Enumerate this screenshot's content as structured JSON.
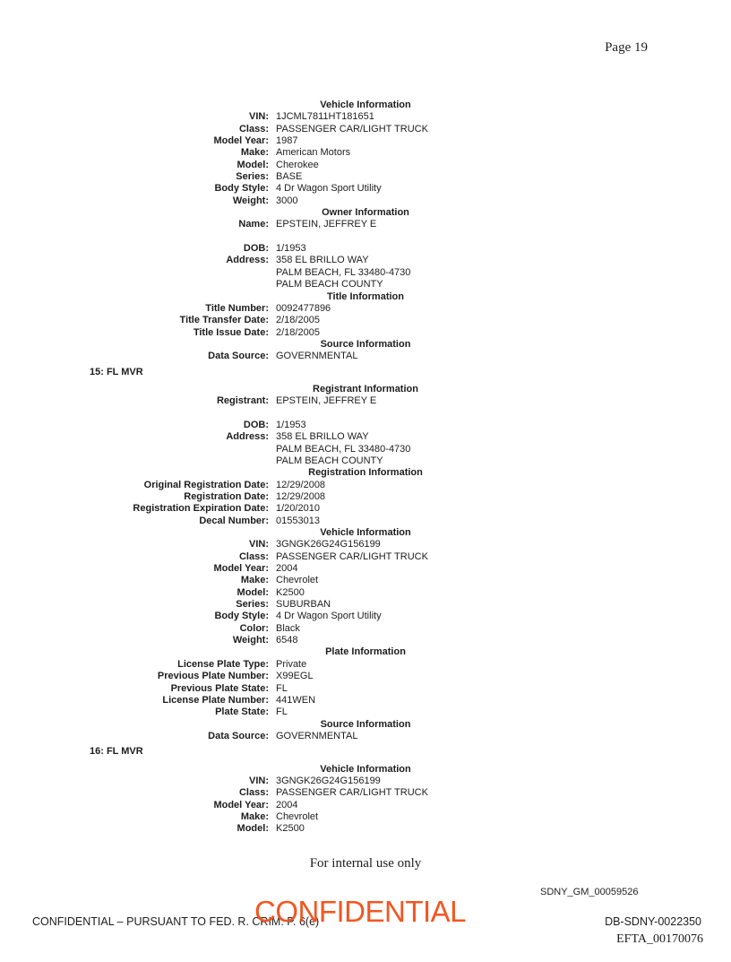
{
  "page": {
    "number_label": "Page 19"
  },
  "document": {
    "lines": [
      {
        "t": "s",
        "text": "Vehicle Information"
      },
      {
        "t": "f",
        "label": "VIN:",
        "value": "1JCML7811HT181651"
      },
      {
        "t": "f",
        "label": "Class:",
        "value": "PASSENGER CAR/LIGHT TRUCK"
      },
      {
        "t": "f",
        "label": "Model Year:",
        "value": "1987"
      },
      {
        "t": "f",
        "label": "Make:",
        "value": "American Motors"
      },
      {
        "t": "f",
        "label": "Model:",
        "value": "Cherokee"
      },
      {
        "t": "f",
        "label": "Series:",
        "value": "BASE"
      },
      {
        "t": "f",
        "label": "Body Style:",
        "value": "4 Dr Wagon Sport Utility"
      },
      {
        "t": "f",
        "label": "Weight:",
        "value": "3000"
      },
      {
        "t": "s",
        "text": "Owner Information"
      },
      {
        "t": "f",
        "label": "Name:",
        "value": "EPSTEIN, JEFFREY E"
      },
      {
        "t": "b"
      },
      {
        "t": "f",
        "label": "DOB:",
        "value": "1/1953"
      },
      {
        "t": "f",
        "label": "Address:",
        "value": "358 EL BRILLO WAY"
      },
      {
        "t": "c",
        "value": "PALM BEACH, FL 33480-4730"
      },
      {
        "t": "c",
        "value": "PALM BEACH COUNTY"
      },
      {
        "t": "s",
        "text": "Title Information"
      },
      {
        "t": "f",
        "label": "Title Number:",
        "value": "0092477896"
      },
      {
        "t": "f",
        "label": "Title Transfer Date:",
        "value": "2/18/2005"
      },
      {
        "t": "f",
        "label": "Title Issue Date:",
        "value": "2/18/2005"
      },
      {
        "t": "s",
        "text": "Source Information"
      },
      {
        "t": "f",
        "label": "Data Source:",
        "value": "GOVERNMENTAL"
      },
      {
        "t": "r",
        "text": "15: FL MVR"
      },
      {
        "t": "s",
        "text": "Registrant Information"
      },
      {
        "t": "f",
        "label": "Registrant:",
        "value": "EPSTEIN, JEFFREY E"
      },
      {
        "t": "b"
      },
      {
        "t": "f",
        "label": "DOB:",
        "value": "1/1953"
      },
      {
        "t": "f",
        "label": "Address:",
        "value": "358 EL BRILLO WAY"
      },
      {
        "t": "c",
        "value": "PALM BEACH, FL 33480-4730"
      },
      {
        "t": "c",
        "value": "PALM BEACH COUNTY"
      },
      {
        "t": "s",
        "text": "Registration Information"
      },
      {
        "t": "f",
        "label": "Original Registration Date:",
        "value": "12/29/2008"
      },
      {
        "t": "f",
        "label": "Registration Date:",
        "value": "12/29/2008"
      },
      {
        "t": "f",
        "label": "Registration Expiration Date:",
        "value": "1/20/2010"
      },
      {
        "t": "f",
        "label": "Decal Number:",
        "value": "01553013"
      },
      {
        "t": "s",
        "text": "Vehicle Information"
      },
      {
        "t": "f",
        "label": "VIN:",
        "value": "3GNGK26G24G156199"
      },
      {
        "t": "f",
        "label": "Class:",
        "value": "PASSENGER CAR/LIGHT TRUCK"
      },
      {
        "t": "f",
        "label": "Model Year:",
        "value": "2004"
      },
      {
        "t": "f",
        "label": "Make:",
        "value": "Chevrolet"
      },
      {
        "t": "f",
        "label": "Model:",
        "value": "K2500"
      },
      {
        "t": "f",
        "label": "Series:",
        "value": "SUBURBAN"
      },
      {
        "t": "f",
        "label": "Body Style:",
        "value": "4 Dr Wagon Sport Utility"
      },
      {
        "t": "f",
        "label": "Color:",
        "value": "Black"
      },
      {
        "t": "f",
        "label": "Weight:",
        "value": "6548"
      },
      {
        "t": "s",
        "text": "Plate Information"
      },
      {
        "t": "f",
        "label": "License Plate Type:",
        "value": "Private"
      },
      {
        "t": "f",
        "label": "Previous Plate Number:",
        "value": "X99EGL"
      },
      {
        "t": "f",
        "label": "Previous Plate State:",
        "value": "FL"
      },
      {
        "t": "f",
        "label": "License Plate Number:",
        "value": "441WEN"
      },
      {
        "t": "f",
        "label": "Plate State:",
        "value": "FL"
      },
      {
        "t": "s",
        "text": "Source Information"
      },
      {
        "t": "f",
        "label": "Data Source:",
        "value": "GOVERNMENTAL"
      },
      {
        "t": "r",
        "text": "16: FL MVR"
      },
      {
        "t": "s",
        "text": "Vehicle Information"
      },
      {
        "t": "f",
        "label": "VIN:",
        "value": "3GNGK26G24G156199"
      },
      {
        "t": "f",
        "label": "Class:",
        "value": "PASSENGER CAR/LIGHT TRUCK"
      },
      {
        "t": "f",
        "label": "Model Year:",
        "value": "2004"
      },
      {
        "t": "f",
        "label": "Make:",
        "value": "Chevrolet"
      },
      {
        "t": "f",
        "label": "Model:",
        "value": "K2500"
      }
    ]
  },
  "footer": {
    "internal_use": "For internal use only",
    "bates_sdny_gm": "SDNY_GM_00059526",
    "watermark": "CONFIDENTIAL",
    "watermark_color": "#f15722",
    "confidential_line": "CONFIDENTIAL – PURSUANT TO FED. R. CRIM. P. 6(e)",
    "bates_db_sdny": "DB-SDNY-0022350",
    "bates_efta": "EFTA_00170076"
  }
}
